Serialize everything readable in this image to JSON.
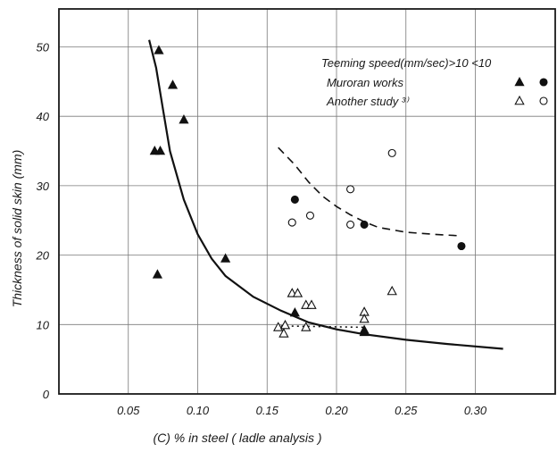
{
  "chart_data": {
    "type": "scatter",
    "xlabel": "(C) % in steel ( ladle analysis )",
    "ylabel": "Thickness of solid skin (mm)",
    "xlim": [
      0,
      0.35
    ],
    "ylim": [
      0,
      55
    ],
    "x_ticks": [
      0.05,
      0.1,
      0.15,
      0.2,
      0.25,
      0.3
    ],
    "x_tick_labels": [
      "0.05",
      "0.10",
      "0.15",
      "0.20",
      "0.25",
      "0.30"
    ],
    "y_ticks": [
      0,
      10,
      20,
      30,
      40,
      50
    ],
    "y_tick_labels": [
      "0",
      "10",
      "20",
      "30",
      "40",
      "50"
    ],
    "grid": true,
    "legend": {
      "placement": "top-right",
      "header": "Teeming speed(mm/sec)>10  <10",
      "rows": [
        {
          "label": "Muroran works",
          "marker_gt10": "filled-triangle",
          "marker_lt10": "filled-circle"
        },
        {
          "label": "Another study ³⁾",
          "marker_gt10": "open-triangle",
          "marker_lt10": "open-circle"
        }
      ]
    },
    "series": [
      {
        "name": "Muroran works >10",
        "marker": "filled-triangle",
        "points": [
          [
            0.072,
            49.5
          ],
          [
            0.082,
            44.5
          ],
          [
            0.09,
            39.5
          ],
          [
            0.069,
            35
          ],
          [
            0.073,
            35
          ],
          [
            0.12,
            19.5
          ],
          [
            0.071,
            17.2
          ],
          [
            0.17,
            11.7
          ],
          [
            0.22,
            9.2
          ],
          [
            0.22,
            8.9
          ]
        ]
      },
      {
        "name": "Muroran works <10",
        "marker": "filled-circle",
        "points": [
          [
            0.17,
            28
          ],
          [
            0.22,
            24.4
          ],
          [
            0.29,
            21.3
          ]
        ]
      },
      {
        "name": "Another study >10",
        "marker": "open-triangle",
        "points": [
          [
            0.168,
            14.5
          ],
          [
            0.172,
            14.5
          ],
          [
            0.178,
            12.8
          ],
          [
            0.182,
            12.8
          ],
          [
            0.178,
            9.6
          ],
          [
            0.158,
            9.6
          ],
          [
            0.162,
            8.7
          ],
          [
            0.163,
            9.9
          ],
          [
            0.22,
            11.8
          ],
          [
            0.22,
            10.8
          ],
          [
            0.24,
            14.8
          ]
        ]
      },
      {
        "name": "Another study <10",
        "marker": "open-circle",
        "points": [
          [
            0.168,
            24.7
          ],
          [
            0.181,
            25.7
          ],
          [
            0.21,
            29.5
          ],
          [
            0.21,
            24.4
          ],
          [
            0.24,
            34.7
          ]
        ]
      }
    ],
    "curves": [
      {
        "style": "solid",
        "points": [
          [
            0.065,
            51
          ],
          [
            0.07,
            47
          ],
          [
            0.075,
            41
          ],
          [
            0.08,
            35
          ],
          [
            0.09,
            28
          ],
          [
            0.1,
            23
          ],
          [
            0.11,
            19.5
          ],
          [
            0.12,
            17
          ],
          [
            0.14,
            14
          ],
          [
            0.16,
            12
          ],
          [
            0.18,
            10.3
          ],
          [
            0.2,
            9.3
          ],
          [
            0.22,
            8.6
          ],
          [
            0.25,
            7.8
          ],
          [
            0.28,
            7.2
          ],
          [
            0.32,
            6.5
          ]
        ]
      },
      {
        "style": "dashed",
        "points": [
          [
            0.158,
            35.5
          ],
          [
            0.17,
            33
          ],
          [
            0.18,
            30.5
          ],
          [
            0.19,
            28.5
          ],
          [
            0.2,
            27
          ],
          [
            0.21,
            25.8
          ],
          [
            0.22,
            24.8
          ],
          [
            0.23,
            24
          ],
          [
            0.25,
            23.3
          ],
          [
            0.27,
            23
          ],
          [
            0.287,
            22.8
          ]
        ]
      },
      {
        "style": "dotted",
        "points": [
          [
            0.16,
            9.8
          ],
          [
            0.22,
            9.6
          ]
        ]
      }
    ]
  }
}
